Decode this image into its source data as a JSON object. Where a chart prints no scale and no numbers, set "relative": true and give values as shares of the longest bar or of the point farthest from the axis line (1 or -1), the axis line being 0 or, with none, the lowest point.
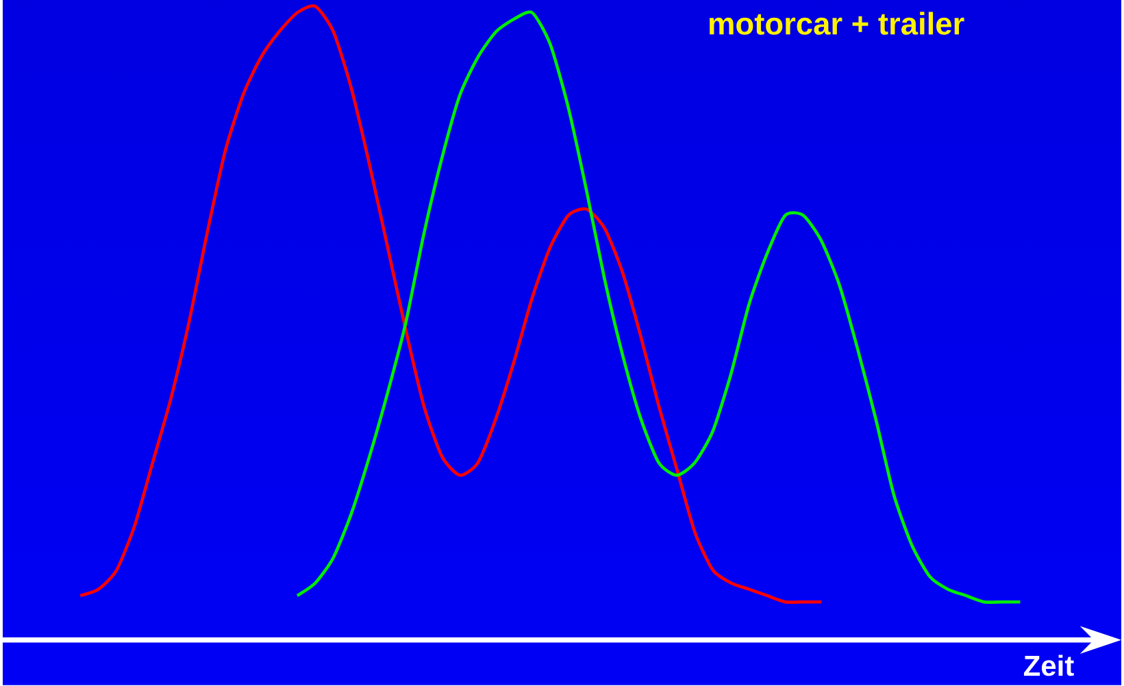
{
  "chart_data": {
    "type": "line",
    "title": "motorcar + trailer",
    "xlabel": "Zeit",
    "relative": true,
    "marker": "none",
    "line_style": "solid",
    "categories": [
      null,
      null,
      null,
      null,
      null,
      null,
      null,
      null,
      null,
      null,
      null,
      null,
      null,
      null,
      null,
      null,
      null,
      null,
      null,
      null,
      null,
      null,
      null,
      null,
      null,
      null,
      null,
      null,
      null,
      null,
      null,
      null,
      null,
      null,
      null,
      null,
      null,
      null,
      null,
      null,
      null,
      null,
      null,
      null,
      null,
      null,
      null,
      null,
      null,
      null,
      null,
      null,
      null
    ],
    "series": [
      {
        "color": "#ff0000",
        "values": [
          0.07,
          0.08,
          0.11,
          0.18,
          0.28,
          0.38,
          0.5,
          0.64,
          0.77,
          0.86,
          0.92,
          0.96,
          0.99,
          1.0,
          0.96,
          0.87,
          0.75,
          0.62,
          0.49,
          0.37,
          0.29,
          0.26,
          0.28,
          0.35,
          0.44,
          0.54,
          0.62,
          0.67,
          0.68,
          0.65,
          0.58,
          0.48,
          0.37,
          0.27,
          0.17,
          0.11,
          0.09,
          0.08,
          0.07,
          0.06,
          0.06,
          0.06,
          null,
          null,
          null,
          null,
          null,
          null,
          null,
          null,
          null,
          null,
          null
        ]
      },
      {
        "color": "#00ee00",
        "values": [
          null,
          null,
          null,
          null,
          null,
          null,
          null,
          null,
          null,
          null,
          null,
          null,
          0.07,
          0.09,
          0.13,
          0.2,
          0.29,
          0.39,
          0.5,
          0.64,
          0.76,
          0.86,
          0.92,
          0.96,
          0.98,
          0.99,
          0.94,
          0.84,
          0.71,
          0.57,
          0.45,
          0.35,
          0.28,
          0.26,
          0.28,
          0.33,
          0.42,
          0.53,
          0.61,
          0.67,
          0.67,
          0.63,
          0.56,
          0.46,
          0.35,
          0.23,
          0.15,
          0.1,
          0.08,
          0.07,
          0.06,
          0.06,
          0.06
        ]
      }
    ]
  }
}
